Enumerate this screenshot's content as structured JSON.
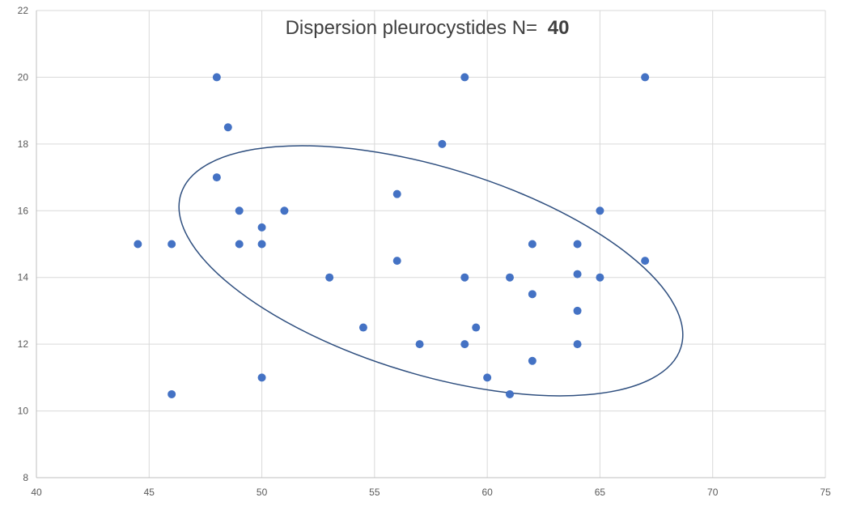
{
  "chart_data": {
    "type": "scatter",
    "title": "Dispersion pleurocystides N=",
    "title_count": "40",
    "xlabel": "",
    "ylabel": "",
    "xlim": [
      40,
      75
    ],
    "ylim": [
      8,
      22
    ],
    "xticks": [
      40,
      45,
      50,
      55,
      60,
      65,
      70,
      75
    ],
    "yticks": [
      8,
      10,
      12,
      14,
      16,
      18,
      20,
      22
    ],
    "grid": "both",
    "legend": "none",
    "colors": {
      "marker": "#4472C4",
      "ellipse": "#2F4F7F",
      "grid": "#D9D9D9"
    },
    "points": [
      {
        "x": 44.5,
        "y": 15
      },
      {
        "x": 46,
        "y": 15
      },
      {
        "x": 46,
        "y": 10.5
      },
      {
        "x": 48,
        "y": 20
      },
      {
        "x": 48,
        "y": 17
      },
      {
        "x": 48.5,
        "y": 18.5
      },
      {
        "x": 49,
        "y": 16
      },
      {
        "x": 49,
        "y": 15
      },
      {
        "x": 50,
        "y": 15.5
      },
      {
        "x": 50,
        "y": 15
      },
      {
        "x": 50,
        "y": 11
      },
      {
        "x": 51,
        "y": 16
      },
      {
        "x": 53,
        "y": 14
      },
      {
        "x": 54.5,
        "y": 12.5
      },
      {
        "x": 56,
        "y": 16.5
      },
      {
        "x": 56,
        "y": 14.5
      },
      {
        "x": 57,
        "y": 12
      },
      {
        "x": 58,
        "y": 18
      },
      {
        "x": 59,
        "y": 20
      },
      {
        "x": 59,
        "y": 14
      },
      {
        "x": 59,
        "y": 12
      },
      {
        "x": 59.5,
        "y": 12.5
      },
      {
        "x": 60,
        "y": 11
      },
      {
        "x": 61,
        "y": 14
      },
      {
        "x": 61,
        "y": 10.5
      },
      {
        "x": 62,
        "y": 15
      },
      {
        "x": 62,
        "y": 13.5
      },
      {
        "x": 62,
        "y": 11.5
      },
      {
        "x": 64,
        "y": 15
      },
      {
        "x": 64,
        "y": 14.1
      },
      {
        "x": 64,
        "y": 13
      },
      {
        "x": 64,
        "y": 12
      },
      {
        "x": 65,
        "y": 16
      },
      {
        "x": 65,
        "y": 14
      },
      {
        "x": 67,
        "y": 20
      },
      {
        "x": 67,
        "y": 14.5
      }
    ],
    "ellipse": {
      "center_x": 57.5,
      "center_y": 14.2,
      "semi_major_x_units": 11.6,
      "semi_minor_y_units": 3.1,
      "rotation_deg": 17
    }
  }
}
